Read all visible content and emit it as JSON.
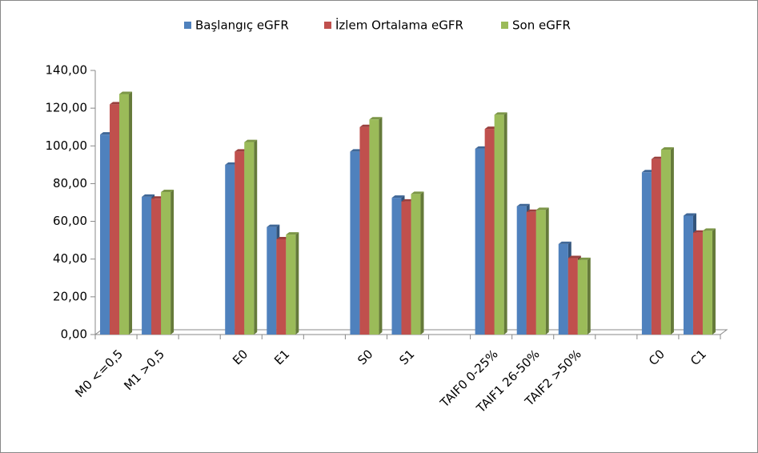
{
  "chart_data": {
    "type": "bar",
    "categories": [
      "M0 <=0,5",
      "M1 >0,5",
      null,
      "E0",
      "E1",
      null,
      "S0",
      "S1",
      null,
      "TAIF0  0-25%",
      "TAIF1 26-50%",
      "TAIF2  >50%",
      null,
      "C0",
      "C1"
    ],
    "series": [
      {
        "name": "Başlangıç eGFR",
        "color": "#4f81bd",
        "values": [
          106,
          73,
          null,
          90,
          57,
          null,
          97,
          72.5,
          null,
          98.5,
          68,
          48,
          null,
          86,
          63
        ]
      },
      {
        "name": "İzlem Ortalama eGFR",
        "color": "#c0504d",
        "values": [
          122,
          72,
          null,
          97,
          50.5,
          null,
          110,
          70.5,
          null,
          109,
          65,
          40.5,
          null,
          93,
          54
        ]
      },
      {
        "name": "Son eGFR",
        "color": "#9bbb59",
        "values": [
          127.5,
          75.5,
          null,
          102,
          53,
          null,
          114,
          74.5,
          null,
          116.5,
          66,
          39.5,
          null,
          98,
          55
        ]
      }
    ],
    "ylim": [
      0,
      140
    ],
    "yticks": [
      {
        "value": 0,
        "label": "0,00"
      },
      {
        "value": 20,
        "label": "20,00"
      },
      {
        "value": 40,
        "label": "40,00"
      },
      {
        "value": 60,
        "label": "60,00"
      },
      {
        "value": 80,
        "label": "80,00"
      },
      {
        "value": 100,
        "label": "100,00"
      },
      {
        "value": 120,
        "label": "120,00"
      },
      {
        "value": 140,
        "label": "140,00"
      }
    ],
    "legend": "top"
  }
}
